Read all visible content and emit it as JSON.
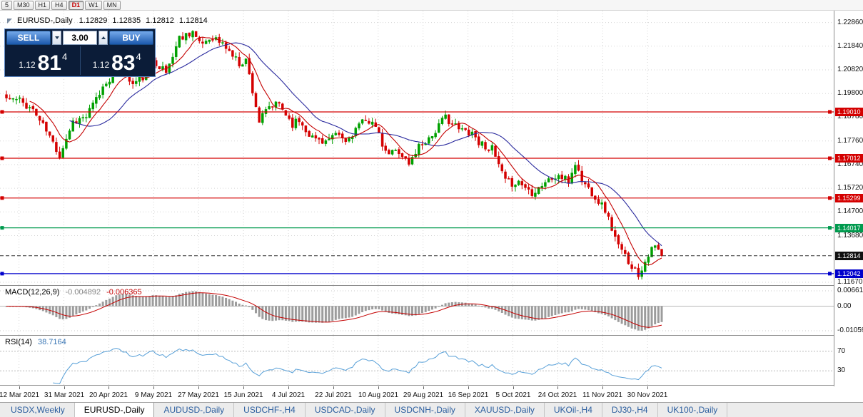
{
  "colors": {
    "up": "#00a000",
    "down": "#d40000",
    "ma_fast": "#c40000",
    "ma_slow": "#2a2a9e",
    "macd_hist": "#9c9c9c",
    "macd_signal": "#c40000",
    "rsi_line": "#58a0d8",
    "grid": "#d6d6d6",
    "tab_text": "#2a5d9e",
    "badge_current": "#101010"
  },
  "toolbar": {
    "timeframes": [
      {
        "label": "5",
        "active": false
      },
      {
        "label": "M30",
        "active": false
      },
      {
        "label": "H1",
        "active": false
      },
      {
        "label": "H4",
        "active": false
      },
      {
        "label": "D1",
        "active": true
      },
      {
        "label": "W1",
        "active": false
      },
      {
        "label": "MN",
        "active": false
      }
    ]
  },
  "header": {
    "symbol": "EURUSD-,Daily",
    "open": "1.12829",
    "high": "1.12835",
    "low": "1.12812",
    "close": "1.12814"
  },
  "trade_panel": {
    "sell_label": "SELL",
    "buy_label": "BUY",
    "volume": "3.00",
    "bid": {
      "prefix": "1.12",
      "big": "81",
      "sup": "4"
    },
    "ask": {
      "prefix": "1.12",
      "big": "83",
      "sup": "4"
    }
  },
  "macd": {
    "title": "MACD(12,26,9)",
    "value_main": "-0.004892",
    "value_signal": "-0.006365",
    "axis_labels": [
      "0.00661",
      "0.00",
      "-0.01059"
    ],
    "axis_values": [
      0.00661,
      0,
      -0.01059
    ]
  },
  "rsi": {
    "title": "RSI(14)",
    "value": "38.7164",
    "levels": [
      "70",
      "30"
    ]
  },
  "chart_data": {
    "type": "candlestick",
    "symbol": "EURUSD-",
    "timeframe": "Daily",
    "candles": 198,
    "seed": 11,
    "current_price": 1.12814,
    "current_price_label": "1.12814",
    "y_range": [
      1.1167,
      1.2286
    ],
    "y_ticks": [
      "1.22860",
      "1.21840",
      "1.20820",
      "1.19800",
      "1.18780",
      "1.17760",
      "1.16740",
      "1.15720",
      "1.14700",
      "1.13680",
      "1.11670"
    ],
    "x_labels": [
      "12 Mar 2021",
      "31 Mar 2021",
      "20 Apr 2021",
      "9 May 2021",
      "27 May 2021",
      "15 Jun 2021",
      "4 Jul 2021",
      "22 Jul 2021",
      "10 Aug 2021",
      "29 Aug 2021",
      "16 Sep 2021",
      "5 Oct 2021",
      "24 Oct 2021",
      "11 Nov 2021",
      "30 Nov 2021"
    ],
    "hlines": [
      {
        "price": 1.1901,
        "label": "1.19010",
        "color": "#d40000"
      },
      {
        "price": 1.17012,
        "label": "1.17012",
        "color": "#d40000"
      },
      {
        "price": 1.15299,
        "label": "1.15299",
        "color": "#d40000"
      },
      {
        "price": 1.14017,
        "label": "1.14017",
        "color": "#009a4e"
      },
      {
        "price": 1.12042,
        "label": "1.12042",
        "color": "#0000cc"
      }
    ],
    "price_anchors": [
      [
        0,
        1.196
      ],
      [
        4,
        1.195
      ],
      [
        8,
        1.191
      ],
      [
        12,
        1.182
      ],
      [
        16,
        1.1715
      ],
      [
        20,
        1.186
      ],
      [
        24,
        1.188
      ],
      [
        30,
        1.203
      ],
      [
        34,
        1.209
      ],
      [
        38,
        1.202
      ],
      [
        42,
        1.206
      ],
      [
        44,
        1.213
      ],
      [
        48,
        1.207
      ],
      [
        52,
        1.222
      ],
      [
        56,
        1.225
      ],
      [
        58,
        1.219
      ],
      [
        62,
        1.2225
      ],
      [
        66,
        1.218
      ],
      [
        70,
        1.211
      ],
      [
        72,
        1.2125
      ],
      [
        74,
        1.1995
      ],
      [
        76,
        1.186
      ],
      [
        79,
        1.192
      ],
      [
        82,
        1.1935
      ],
      [
        86,
        1.185
      ],
      [
        88,
        1.1865
      ],
      [
        92,
        1.179
      ],
      [
        96,
        1.1775
      ],
      [
        100,
        1.18
      ],
      [
        102,
        1.177
      ],
      [
        106,
        1.1845
      ],
      [
        110,
        1.187
      ],
      [
        114,
        1.172
      ],
      [
        118,
        1.1735
      ],
      [
        121,
        1.1675
      ],
      [
        124,
        1.1755
      ],
      [
        128,
        1.18
      ],
      [
        130,
        1.184
      ],
      [
        132,
        1.188
      ],
      [
        136,
        1.1825
      ],
      [
        140,
        1.1815
      ],
      [
        142,
        1.177
      ],
      [
        146,
        1.174
      ],
      [
        150,
        1.16
      ],
      [
        152,
        1.1595
      ],
      [
        154,
        1.16
      ],
      [
        158,
        1.1555
      ],
      [
        162,
        1.16
      ],
      [
        166,
        1.1625
      ],
      [
        169,
        1.16
      ],
      [
        171,
        1.168
      ],
      [
        173,
        1.1605
      ],
      [
        176,
        1.1555
      ],
      [
        180,
        1.148
      ],
      [
        184,
        1.132
      ],
      [
        188,
        1.124
      ],
      [
        190,
        1.12
      ],
      [
        193,
        1.129
      ],
      [
        195,
        1.132
      ],
      [
        197,
        1.12814
      ]
    ]
  },
  "bottom_tabs": [
    {
      "label": "USDX,Weekly",
      "active": false
    },
    {
      "label": "EURUSD-,Daily",
      "active": true
    },
    {
      "label": "AUDUSD-,Daily",
      "active": false
    },
    {
      "label": "USDCHF-,H4",
      "active": false
    },
    {
      "label": "USDCAD-,Daily",
      "active": false
    },
    {
      "label": "USDCNH-,Daily",
      "active": false
    },
    {
      "label": "XAUUSD-,Daily",
      "active": false
    },
    {
      "label": "UKOil-,H4",
      "active": false
    },
    {
      "label": "DJ30-,H4",
      "active": false
    },
    {
      "label": "UK100-,Daily",
      "active": false
    }
  ]
}
